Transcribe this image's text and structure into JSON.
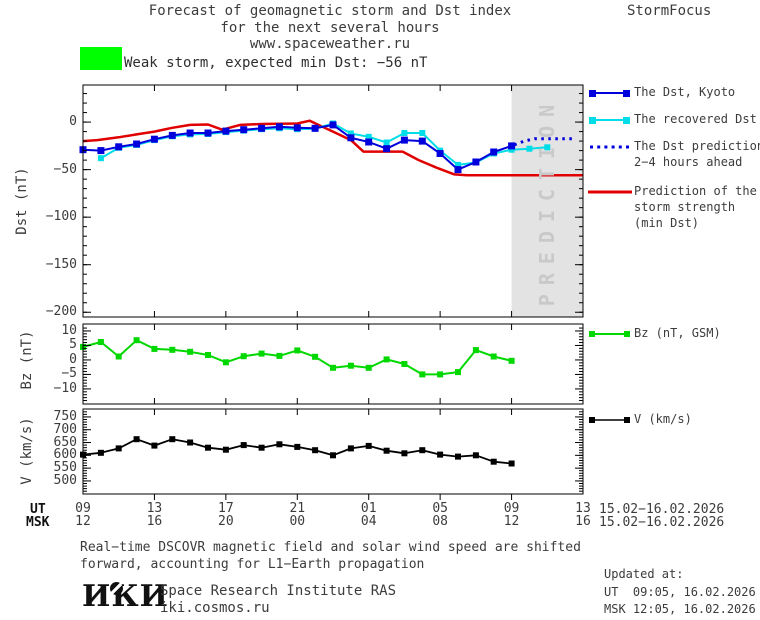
{
  "header": {
    "title_line1": "Forecast of geomagnetic storm and Dst index",
    "title_line2": "for the next several hours",
    "title_line3": "www.spaceweather.ru",
    "brand": "StormFocus"
  },
  "storm_banner": {
    "label": "Weak storm, expected min Dst: −56 nT",
    "swatch_color": "#00ff00"
  },
  "legend": {
    "dst_kyoto": "The Dst, Kyoto",
    "recovered": "The recovered Dst",
    "prediction_line1": "The Dst prediction",
    "prediction_line2": "2−4 hours ahead",
    "strength_line1": "Prediction of the",
    "strength_line2": "storm strength",
    "strength_line3": "(min Dst)",
    "bz": "Bz (nT, GSM)",
    "v": "V (km/s)"
  },
  "axis_labels": {
    "dst": "Dst (nT)",
    "bz": "Bz (nT)",
    "v": "V (km/s)"
  },
  "x_axis": {
    "ut_label": "UT",
    "msk_label": "MSK",
    "ut_hours": [
      "09",
      "13",
      "17",
      "21",
      "01",
      "05",
      "09",
      "13"
    ],
    "msk_hours": [
      "12",
      "16",
      "20",
      "00",
      "04",
      "08",
      "12",
      "16"
    ],
    "ut_date": "15.02−16.02.2026",
    "msk_date": "15.02−16.02.2026"
  },
  "footer": {
    "note_line1": "Real−time DSCOVR magnetic field and solar wind speed are shifted",
    "note_line2": "forward, accounting for L1−Earth propagation",
    "logo_text": "ИКИ",
    "institute": "Space Research Institute RAS",
    "institute_url": "iki.cosmos.ru",
    "updated_label": "Updated at:",
    "updated_ut": "UT  09:05, 16.02.2026",
    "updated_msk": "MSK 12:05, 16.02.2026"
  },
  "chart_data": {
    "type": "line",
    "title": "Forecast of geomagnetic storm and Dst index for the next several hours",
    "x_unit": "hours since 09:00 UT 15.02.2026",
    "x_range_hours": [
      0,
      28
    ],
    "x_ticks": {
      "hours": [
        0,
        4,
        8,
        12,
        16,
        20,
        24,
        28
      ]
    },
    "prediction_band": {
      "from_hour": 24,
      "to_hour": 28,
      "color": "#e3e3e3",
      "label": "PREDICTION"
    },
    "panels": [
      {
        "id": "dst",
        "ylabel": "Dst (nT)",
        "ylim": [
          -205,
          39
        ],
        "yticks": {
          "major": {
            "values": [
              0,
              -50,
              -100,
              -150,
              -200
            ],
            "labels": [
              "0",
              "−50",
              "−100",
              "−150",
              "−200"
            ]
          },
          "minor_step": 10
        },
        "series_ids": [
          "storm_strength",
          "recovered",
          "dst_kyoto",
          "dst_prediction"
        ]
      },
      {
        "id": "bz",
        "ylabel": "Bz (nT)",
        "ylim": [
          -15.2,
          12.4
        ],
        "yticks": {
          "major": {
            "values": [
              10,
              5,
              0,
              -5,
              -10
            ],
            "labels": [
              "10",
              "5",
              "0",
              "−5",
              "−10"
            ]
          },
          "minor_step": 1
        },
        "series_ids": [
          "bz"
        ]
      },
      {
        "id": "v",
        "ylabel": "V (km/s)",
        "ylim": [
          449,
          781
        ],
        "yticks": {
          "major": {
            "values": [
              750,
              700,
              650,
              600,
              550,
              500
            ],
            "labels": [
              "750",
              "700",
              "650",
              "600",
              "550",
              "500"
            ]
          },
          "minor_step": 10
        },
        "series_ids": [
          "v"
        ]
      }
    ],
    "series": {
      "dst_kyoto": {
        "name": "The Dst, Kyoto",
        "color": "#0000dd",
        "marker": "square",
        "start_hour": 0,
        "step_hours": 1,
        "values": [
          -29,
          -30,
          -26,
          -23,
          -18,
          -14,
          -11.5,
          -11.5,
          -9.5,
          -8,
          -6.5,
          -5,
          -6,
          -6.5,
          -3,
          -16.5,
          -21,
          -28,
          -19,
          -20,
          -33,
          -50,
          -42,
          -31.5,
          -25
        ]
      },
      "recovered": {
        "name": "The recovered Dst",
        "color": "#00dde8",
        "marker": "square",
        "start_hour": 1,
        "step_hours": 1,
        "values": [
          -38,
          -27,
          -24,
          -19,
          -15,
          -13,
          -12.5,
          -10.5,
          -9,
          -7.5,
          -6.5,
          -7.5,
          -7,
          -1.5,
          -12,
          -15.5,
          -21.5,
          -11.5,
          -11.5,
          -30,
          -45,
          -42.5,
          -33,
          -29,
          -28,
          -26.5
        ]
      },
      "dst_prediction": {
        "name": "The Dst prediction 2−4 hours ahead",
        "color": "#0000dd",
        "style": "dotted",
        "points": [
          [
            24.15,
            -24
          ],
          [
            24.7,
            -20
          ],
          [
            25.3,
            -17.5
          ],
          [
            27.4,
            -17.5
          ]
        ]
      },
      "storm_strength": {
        "name": "Prediction of the storm strength (min Dst)",
        "color": "#e00000",
        "points": [
          [
            0,
            -20
          ],
          [
            0.8,
            -19
          ],
          [
            2,
            -16
          ],
          [
            3,
            -13
          ],
          [
            4,
            -10
          ],
          [
            5,
            -6
          ],
          [
            6,
            -3
          ],
          [
            7,
            -2.5
          ],
          [
            7.8,
            -8
          ],
          [
            8.8,
            -3
          ],
          [
            10,
            -2
          ],
          [
            12,
            -1.5
          ],
          [
            12.7,
            1.5
          ],
          [
            13.3,
            -4
          ],
          [
            14,
            -10
          ],
          [
            15,
            -19
          ],
          [
            15.7,
            -31
          ],
          [
            17.9,
            -31
          ],
          [
            18.8,
            -40
          ],
          [
            19.8,
            -48
          ],
          [
            20.8,
            -55
          ],
          [
            21.5,
            -56
          ],
          [
            28,
            -56
          ]
        ]
      },
      "bz": {
        "name": "Bz (nT, GSM)",
        "color": "#00d800",
        "marker": "square",
        "start_hour": 0,
        "step_hours": 1,
        "values": [
          4.5,
          6.2,
          1.2,
          6.8,
          3.8,
          3.5,
          2.8,
          1.7,
          -0.8,
          1.3,
          2.2,
          1.4,
          3.3,
          1.1,
          -2.7,
          -2,
          -2.7,
          0.2,
          -1.4,
          -5,
          -5,
          -4.2,
          3.4,
          1.2,
          -0.3
        ]
      },
      "v": {
        "name": "V (km/s)",
        "color": "#000000",
        "marker": "square",
        "start_hour": 0,
        "step_hours": 1,
        "values": [
          603,
          610,
          627,
          663,
          638,
          663,
          650,
          630,
          622,
          640,
          630,
          643,
          633,
          620,
          600,
          627,
          637,
          618,
          608,
          620,
          603,
          595,
          600,
          575,
          568
        ]
      }
    }
  }
}
